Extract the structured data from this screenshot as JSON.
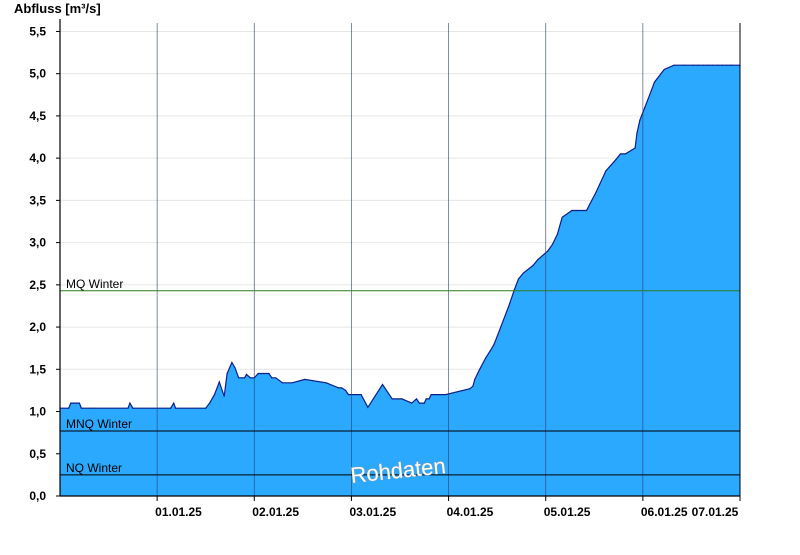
{
  "chart_data": {
    "type": "area",
    "ylabel": "Abfluss [m³/s]",
    "ylim": [
      0,
      5.6
    ],
    "y_ticks": [
      "0,0",
      "0,5",
      "1,0",
      "1,5",
      "2,0",
      "2,5",
      "3,0",
      "3,5",
      "4,0",
      "4,5",
      "5,0",
      "5,5"
    ],
    "x_unit": "days since 31.12.24 00:00",
    "xlim": [
      0.28,
      7.28
    ],
    "x_ticks": [
      {
        "label": "01.01.25",
        "x": 1.5
      },
      {
        "label": "02.01.25",
        "x": 2.5
      },
      {
        "label": "03.01.25",
        "x": 3.5
      },
      {
        "label": "04.01.25",
        "x": 4.5
      },
      {
        "label": "05.01.25",
        "x": 5.5
      },
      {
        "label": "06.01.25",
        "x": 6.5
      },
      {
        "label": "07.01.25",
        "x": 7.5
      }
    ],
    "day_dividers": [
      1.28,
      2.28,
      3.28,
      4.28,
      5.28,
      6.28,
      7.28
    ],
    "grid": true,
    "colors": {
      "fill": "#2aa9ff",
      "line": "#0a1f8a",
      "mq": "#2e7d1f",
      "ref": "#000000"
    },
    "reference_lines": [
      {
        "name": "MQ Winter",
        "value": 2.43
      },
      {
        "name": "MNQ Winter",
        "value": 0.77
      },
      {
        "name": "NQ Winter",
        "value": 0.25
      }
    ],
    "watermark": "Rohdaten",
    "series": [
      {
        "name": "",
        "x": [
          0.28,
          0.37,
          0.39,
          0.48,
          0.5,
          0.62,
          0.98,
          1.0,
          1.03,
          1.42,
          1.45,
          1.47,
          1.78,
          1.82,
          1.87,
          1.92,
          1.97,
          2.0,
          2.05,
          2.08,
          2.12,
          2.15,
          2.18,
          2.2,
          2.24,
          2.28,
          2.32,
          2.43,
          2.46,
          2.5,
          2.57,
          2.67,
          2.8,
          3.02,
          3.15,
          3.18,
          3.22,
          3.25,
          3.38,
          3.45,
          3.6,
          3.7,
          3.8,
          3.9,
          3.95,
          3.98,
          4.03,
          4.05,
          4.08,
          4.1,
          4.16,
          4.25,
          4.5,
          4.53,
          4.55,
          4.6,
          4.66,
          4.71,
          4.75,
          4.8,
          4.9,
          4.96,
          5.0,
          5.05,
          5.15,
          5.2,
          5.3,
          5.35,
          5.4,
          5.45,
          5.55,
          5.6,
          5.7,
          5.8,
          5.9,
          6.0,
          6.05,
          6.1,
          6.2,
          6.22,
          6.25,
          6.3,
          6.35,
          6.4,
          6.5,
          6.6,
          6.7,
          6.8,
          6.85,
          6.9,
          6.95,
          7.0,
          7.05,
          7.1,
          7.14,
          7.18,
          7.2,
          7.28
        ],
        "y": [
          1.04,
          1.04,
          1.1,
          1.1,
          1.04,
          1.04,
          1.04,
          1.1,
          1.04,
          1.04,
          1.1,
          1.04,
          1.04,
          1.1,
          1.2,
          1.35,
          1.18,
          1.45,
          1.58,
          1.52,
          1.4,
          1.4,
          1.4,
          1.44,
          1.4,
          1.4,
          1.45,
          1.45,
          1.4,
          1.4,
          1.34,
          1.34,
          1.38,
          1.34,
          1.28,
          1.28,
          1.25,
          1.2,
          1.2,
          1.05,
          1.32,
          1.15,
          1.15,
          1.1,
          1.15,
          1.1,
          1.1,
          1.15,
          1.15,
          1.2,
          1.2,
          1.2,
          1.27,
          1.3,
          1.38,
          1.5,
          1.63,
          1.72,
          1.8,
          1.95,
          2.25,
          2.45,
          2.57,
          2.64,
          2.73,
          2.8,
          2.9,
          2.98,
          3.1,
          3.3,
          3.38,
          3.38,
          3.38,
          3.6,
          3.85,
          3.98,
          4.05,
          4.05,
          4.12,
          4.3,
          4.45,
          4.6,
          4.75,
          4.9,
          5.05,
          5.1,
          5.1,
          5.1,
          5.1,
          5.1,
          5.1,
          5.1,
          5.1,
          5.1,
          5.1,
          5.1,
          5.1,
          5.1
        ]
      }
    ]
  }
}
